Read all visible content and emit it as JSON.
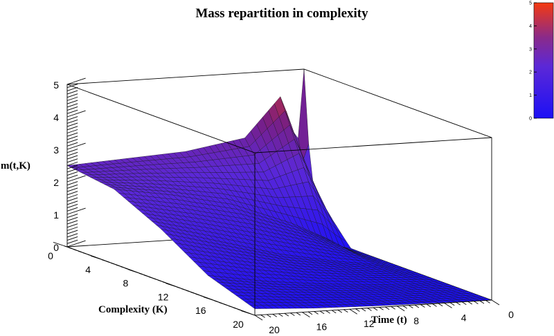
{
  "chart_data": {
    "type": "surface",
    "title": "Mass repartition in complexity",
    "xlabel": "Time (t)",
    "ylabel": "Complexity (K)",
    "zlabel": "m(t,K)",
    "x_ticks": [
      0,
      4,
      8,
      12,
      16,
      20
    ],
    "y_ticks": [
      0,
      4,
      8,
      12,
      16,
      20
    ],
    "z_ticks": [
      0,
      1,
      2,
      3,
      4,
      5
    ],
    "xlim": [
      0,
      20
    ],
    "ylim": [
      0,
      20
    ],
    "zlim": [
      0,
      5
    ],
    "palette_ticks": [
      0,
      1,
      2,
      3,
      4,
      5
    ],
    "palette_range": [
      0,
      5
    ],
    "grid": false,
    "surface_samples": {
      "description_of_axes": "rows t, columns K",
      "t": [
        0,
        5,
        10,
        15,
        20
      ],
      "K": [
        0,
        5,
        10,
        15,
        20
      ],
      "m": [
        [
          5.0,
          0.0,
          0.0,
          0.0,
          0.0
        ],
        [
          3.0,
          0.9,
          0.25,
          0.07,
          0.02
        ],
        [
          2.7,
          1.6,
          0.6,
          0.2,
          0.05
        ],
        [
          2.6,
          2.0,
          1.1,
          0.4,
          0.1
        ],
        [
          2.5,
          2.3,
          1.6,
          0.7,
          0.2
        ]
      ]
    },
    "colors": {
      "low": "#1c10f5",
      "mid": "#5b2ad9",
      "high": "#f53a10"
    }
  }
}
